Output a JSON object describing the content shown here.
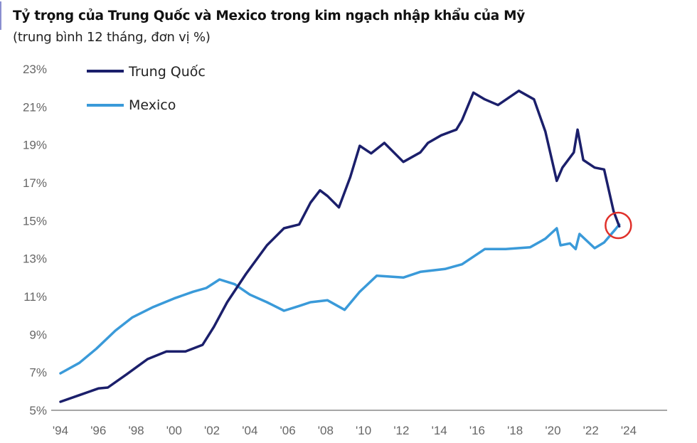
{
  "chart_data": {
    "type": "line",
    "title": "Tỷ trọng của Trung Quốc và Mexico trong kim ngạch nhập khẩu của Mỹ",
    "subtitle": "(trung bình 12 tháng, đơn vị %)",
    "xlabel": "",
    "ylabel": "",
    "ylim": [
      5,
      23
    ],
    "xlim": [
      1994,
      2024
    ],
    "y_ticks": [
      {
        "value": 23,
        "label": "23%"
      },
      {
        "value": 21,
        "label": "21%"
      },
      {
        "value": 19,
        "label": "19%"
      },
      {
        "value": 17,
        "label": "17%"
      },
      {
        "value": 15,
        "label": "15%"
      },
      {
        "value": 13,
        "label": "13%"
      },
      {
        "value": 11,
        "label": "11%"
      },
      {
        "value": 9,
        "label": "9%"
      },
      {
        "value": 7,
        "label": "7%"
      },
      {
        "value": 5,
        "label": "5%"
      }
    ],
    "x_ticks": [
      {
        "value": 1994,
        "label": "'94"
      },
      {
        "value": 1996,
        "label": "'96"
      },
      {
        "value": 1998,
        "label": "'98"
      },
      {
        "value": 2000,
        "label": "'00"
      },
      {
        "value": 2002,
        "label": "'02"
      },
      {
        "value": 2004,
        "label": "'04"
      },
      {
        "value": 2006,
        "label": "'06"
      },
      {
        "value": 2008,
        "label": "'08"
      },
      {
        "value": 2010,
        "label": "'10"
      },
      {
        "value": 2012,
        "label": "'12"
      },
      {
        "value": 2014,
        "label": "'14"
      },
      {
        "value": 2016,
        "label": "'16"
      },
      {
        "value": 2018,
        "label": "'18"
      },
      {
        "value": 2020,
        "label": "'20"
      },
      {
        "value": 2022,
        "label": "'22"
      },
      {
        "value": 2024,
        "label": "'24"
      }
    ],
    "grid": false,
    "legend_position": "top-left",
    "series": [
      {
        "name": "Trung Quốc",
        "color": "#1b1f6b",
        "x": [
          1994,
          1995,
          1996,
          1996.5,
          1997.5,
          1998.6,
          1999.6,
          2000.6,
          2001.5,
          2002.1,
          2002.8,
          2003.8,
          2004.9,
          2005.8,
          2006.6,
          2007.2,
          2007.7,
          2008.1,
          2008.7,
          2009.3,
          2009.8,
          2010.4,
          2011.1,
          2012.1,
          2013,
          2013.4,
          2014.1,
          2014.9,
          2015.2,
          2015.8,
          2016.4,
          2017.1,
          2018.2,
          2019,
          2019.6,
          2020.2,
          2020.5,
          2021.1,
          2021.3,
          2021.6,
          2022.2,
          2022.7,
          2023.2,
          2023.5
        ],
        "y": [
          5.45,
          5.8,
          6.15,
          6.2,
          6.9,
          7.7,
          8.1,
          8.1,
          8.45,
          9.4,
          10.7,
          12.2,
          13.7,
          14.6,
          14.8,
          15.95,
          16.6,
          16.3,
          15.7,
          17.3,
          18.95,
          18.55,
          19.1,
          18.1,
          18.6,
          19.1,
          19.5,
          19.8,
          20.3,
          21.75,
          21.4,
          21.1,
          21.85,
          21.4,
          19.7,
          17.1,
          17.8,
          18.6,
          19.8,
          18.2,
          17.8,
          17.7,
          15.5,
          14.7
        ]
      },
      {
        "name": "Mexico",
        "color": "#3a9ad9",
        "x": [
          1994,
          1995,
          1995.9,
          1996.9,
          1997.8,
          1998.9,
          2000,
          2001,
          2001.7,
          2002.4,
          2003.2,
          2004,
          2004.9,
          2005.8,
          2006.6,
          2007.2,
          2008.1,
          2009,
          2009.8,
          2010.7,
          2012.1,
          2013,
          2014.3,
          2015.2,
          2016.4,
          2017.5,
          2018.8,
          2019.6,
          2020.2,
          2020.4,
          2020.9,
          2021.2,
          2021.4,
          2022.2,
          2022.7,
          2023.3,
          2023.5
        ],
        "y": [
          6.95,
          7.5,
          8.25,
          9.2,
          9.9,
          10.45,
          10.9,
          11.25,
          11.45,
          11.9,
          11.65,
          11.1,
          10.7,
          10.25,
          10.5,
          10.7,
          10.8,
          10.3,
          11.25,
          12.1,
          12.0,
          12.3,
          12.45,
          12.7,
          13.5,
          13.5,
          13.6,
          14.05,
          14.6,
          13.7,
          13.8,
          13.5,
          14.3,
          13.55,
          13.85,
          14.55,
          14.8
        ]
      }
    ],
    "annotations": [
      {
        "type": "circle",
        "x": 2023.45,
        "y": 14.75,
        "color": "#e0302a"
      }
    ]
  }
}
